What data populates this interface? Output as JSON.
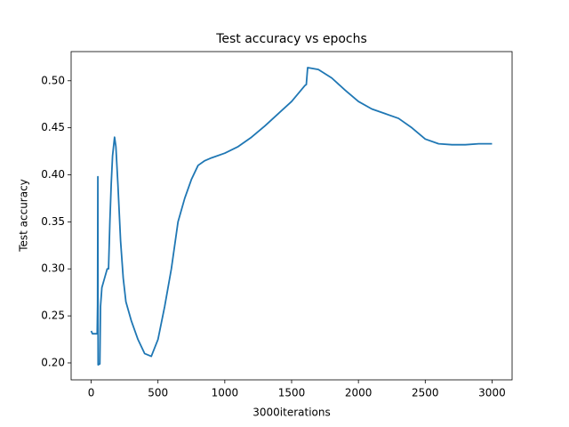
{
  "chart_data": {
    "type": "line",
    "title": "Test accuracy vs epochs",
    "xlabel": "3000iterations",
    "ylabel": "Test accuracy",
    "x": [
      0,
      10,
      45,
      48,
      50,
      52,
      65,
      70,
      80,
      100,
      120,
      130,
      140,
      150,
      160,
      175,
      185,
      200,
      220,
      240,
      260,
      300,
      350,
      400,
      450,
      500,
      550,
      600,
      650,
      700,
      750,
      800,
      850,
      900,
      1000,
      1100,
      1200,
      1300,
      1400,
      1500,
      1600,
      1610,
      1620,
      1700,
      1800,
      1900,
      2000,
      2100,
      2200,
      2300,
      2400,
      2500,
      2600,
      2700,
      2800,
      2900,
      3000
    ],
    "series": [
      {
        "name": "Test accuracy",
        "color": "#1f77b4",
        "values": [
          0.234,
          0.231,
          0.231,
          0.262,
          0.398,
          0.198,
          0.199,
          0.26,
          0.28,
          0.29,
          0.3,
          0.3,
          0.35,
          0.39,
          0.42,
          0.44,
          0.43,
          0.39,
          0.33,
          0.29,
          0.265,
          0.245,
          0.225,
          0.21,
          0.207,
          0.225,
          0.26,
          0.3,
          0.35,
          0.375,
          0.395,
          0.41,
          0.415,
          0.418,
          0.423,
          0.43,
          0.44,
          0.452,
          0.465,
          0.478,
          0.495,
          0.496,
          0.514,
          0.512,
          0.503,
          0.49,
          0.478,
          0.47,
          0.465,
          0.46,
          0.45,
          0.438,
          0.433,
          0.432,
          0.432,
          0.433,
          0.433
        ]
      }
    ],
    "xlim": [
      -150,
      3150
    ],
    "ylim": [
      0.182,
      0.531
    ],
    "xticks": [
      0,
      500,
      1000,
      1500,
      2000,
      2500,
      3000
    ],
    "yticks": [
      {
        "value": 0.2,
        "label": "0.20"
      },
      {
        "value": 0.25,
        "label": "0.25"
      },
      {
        "value": 0.3,
        "label": "0.30"
      },
      {
        "value": 0.35,
        "label": "0.35"
      },
      {
        "value": 0.4,
        "label": "0.40"
      },
      {
        "value": 0.45,
        "label": "0.45"
      },
      {
        "value": 0.5,
        "label": "0.50"
      }
    ]
  }
}
